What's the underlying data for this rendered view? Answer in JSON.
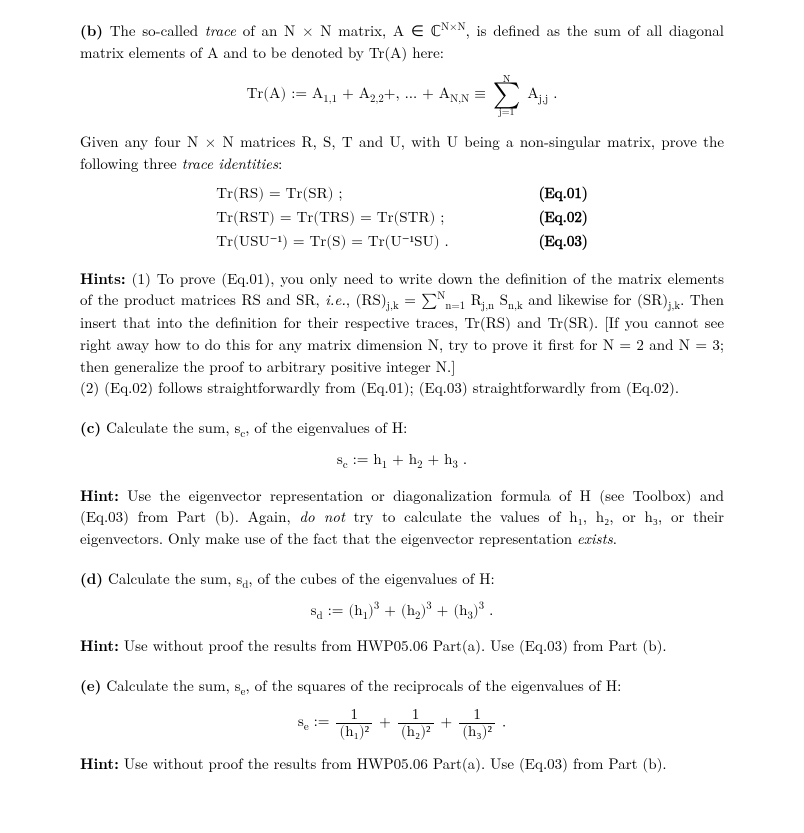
{
  "partB": {
    "label": "(b)",
    "intro1": "The so-called ",
    "traceWord": "trace",
    "intro2": " of an N × N matrix, A ∈ ℂ",
    "intro2sup": "N×N",
    "intro3": ", is defined as the sum of all diagonal matrix elements of A and to be denoted by Tr(A) here:",
    "traceDef": {
      "lhs": "Tr(A) := A",
      "sub11": "1,1",
      "plus1": " + A",
      "sub22": "2,2",
      "plus2": "+, … + A",
      "subNN": "N,N",
      "equiv": " ≡ ",
      "sumTop": "N",
      "sumBot": "j=1",
      "summand": "A",
      "summandSub": "j,j",
      "period": " ."
    },
    "given": "Given any four N × N matrices R, S, T and U, with U being a non-singular matrix, prove the following three ",
    "traceIdWord": "trace identities",
    "colon": ":",
    "eq01": {
      "body": "Tr(RS) = Tr(SR) ;",
      "num": "(Eq.01)"
    },
    "eq02": {
      "body": "Tr(RST) = Tr(TRS) = Tr(STR) ;",
      "num": "(Eq.02)"
    },
    "eq03": {
      "body": "Tr(USU⁻¹) = Tr(S) = Tr(U⁻¹SU) .",
      "num": "(Eq.03)"
    },
    "hintsLabel": "Hints:",
    "hint1a": "(1) To prove (Eq.01), you only need to write down the definition of the matrix elements of the product matrices RS and SR, ",
    "ie": "i.e.",
    "hint1b": ", (RS)",
    "hint1b_sub": "j,k",
    "hint1c": " = ",
    "hintSumTop": "N",
    "hintSumBot": "n=1",
    "hintSumBody": " R",
    "hintSumBodySub1": "j,n",
    "hintSumBody2": " S",
    "hintSumBodySub2": "n,k",
    "hint1d": " and likewise for (SR)",
    "hint1d_sub": "j,k",
    "hint1e": ".  Then insert that into the definition for their respective traces, Tr(RS) and Tr(SR).  [If you cannot see right away how to do this for any matrix dimension N, try to prove it first for N = 2 and N = 3; then generalize the proof to arbitrary positive integer N.]",
    "hint2": "(2) (Eq.02) follows straightforwardly from (Eq.01); (Eq.03) straightforwardly from (Eq.02)."
  },
  "partC": {
    "label": "(c)",
    "text": "Calculate the sum, s",
    "sub": "c",
    "text2": ", of the eigenvalues of H:",
    "eq": "s_c := h₁ + h₂ + h₃ .",
    "hintLabel": "Hint:",
    "hint1": " Use the eigenvector representation or diagonalization formula of H (see Toolbox) and (Eq.03) from Part (b).  Again, ",
    "donot": "do not",
    "hint2": " try to calculate the values of h₁, h₂, or h₃, or their eigenvectors. Only make use of the fact that the eigenvector representation ",
    "exists": "exists",
    "period": "."
  },
  "partD": {
    "label": "(d)",
    "text": "Calculate the sum, s",
    "sub": "d",
    "text2": ", of the cubes of the eigenvalues of H:",
    "eq": "s_d := (h₁)³ + (h₂)³ + (h₃)³ .",
    "hintLabel": "Hint:",
    "hint": " Use without proof the results from HWP05.06 Part(a). Use (Eq.03) from Part (b)."
  },
  "partE": {
    "label": "(e)",
    "text": "Calculate the sum, s",
    "sub": "e",
    "text2": ", of the squares of the reciprocals of the eigenvalues of H:",
    "eqLhs": "s_e := ",
    "frac1num": "1",
    "frac1den": "(h₁)²",
    "plus": " + ",
    "frac2num": "1",
    "frac2den": "(h₂)²",
    "frac3num": "1",
    "frac3den": "(h₃)²",
    "period": " .",
    "hintLabel": "Hint:",
    "hint": " Use without proof the results from HWP05.06 Part(a). Use (Eq.03) from Part (b)."
  }
}
